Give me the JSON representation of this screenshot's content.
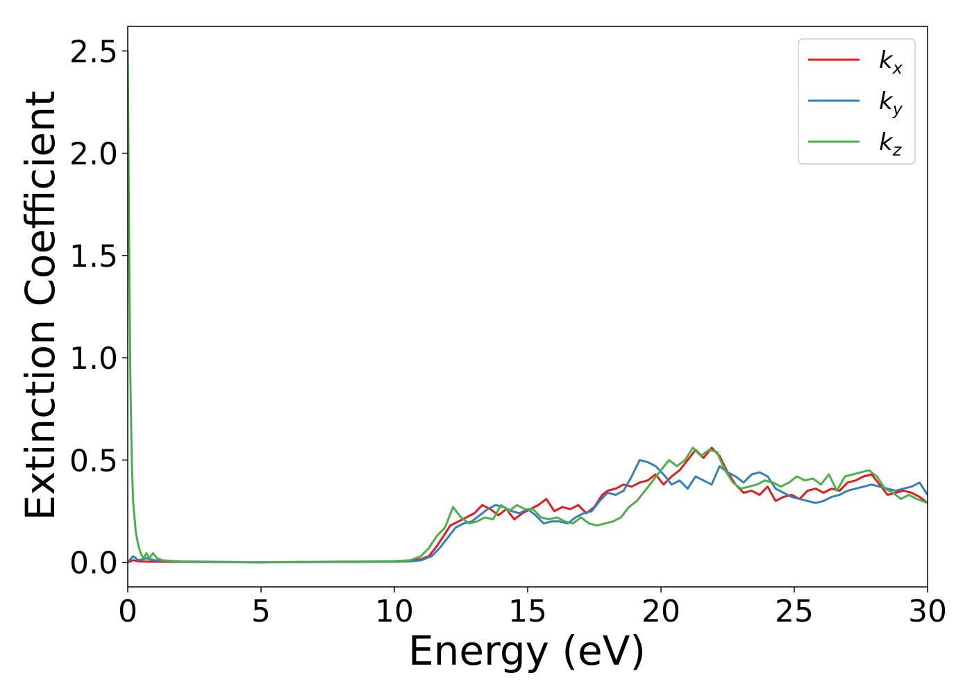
{
  "chart_data": {
    "type": "line",
    "title": "",
    "xlabel": "Energy (eV)",
    "ylabel": "Extinction Coefficient",
    "xlim": [
      0,
      30
    ],
    "ylim": [
      -0.12,
      2.62
    ],
    "xticks": [
      0,
      5,
      10,
      15,
      20,
      25,
      30
    ],
    "xtick_labels": [
      "0",
      "5",
      "10",
      "15",
      "20",
      "25",
      "30"
    ],
    "yticks": [
      0.0,
      0.5,
      1.0,
      1.5,
      2.0,
      2.5
    ],
    "ytick_labels": [
      "0.0",
      "0.5",
      "1.0",
      "1.5",
      "2.0",
      "2.5"
    ],
    "grid": false,
    "legend_position": "top-right",
    "series": [
      {
        "name": "k",
        "subscript": "x",
        "color": "#e41a1c",
        "points": [
          [
            0,
            0
          ],
          [
            0.2,
            0.01
          ],
          [
            0.4,
            0.005
          ],
          [
            1,
            0.003
          ],
          [
            2,
            0.002
          ],
          [
            5,
            0
          ],
          [
            10,
            0.005
          ],
          [
            10.6,
            0.008
          ],
          [
            11.0,
            0.015
          ],
          [
            11.3,
            0.03
          ],
          [
            11.6,
            0.08
          ],
          [
            11.9,
            0.14
          ],
          [
            12.1,
            0.18
          ],
          [
            12.4,
            0.2
          ],
          [
            12.7,
            0.22
          ],
          [
            13.0,
            0.24
          ],
          [
            13.3,
            0.28
          ],
          [
            13.6,
            0.26
          ],
          [
            13.9,
            0.23
          ],
          [
            14.2,
            0.26
          ],
          [
            14.5,
            0.21
          ],
          [
            14.8,
            0.24
          ],
          [
            15.1,
            0.26
          ],
          [
            15.4,
            0.28
          ],
          [
            15.7,
            0.31
          ],
          [
            16.0,
            0.25
          ],
          [
            16.3,
            0.27
          ],
          [
            16.6,
            0.26
          ],
          [
            16.9,
            0.28
          ],
          [
            17.2,
            0.24
          ],
          [
            17.5,
            0.27
          ],
          [
            17.8,
            0.33
          ],
          [
            18.0,
            0.35
          ],
          [
            18.3,
            0.36
          ],
          [
            18.6,
            0.38
          ],
          [
            18.9,
            0.37
          ],
          [
            19.2,
            0.39
          ],
          [
            19.5,
            0.4
          ],
          [
            19.8,
            0.43
          ],
          [
            20.1,
            0.38
          ],
          [
            20.4,
            0.42
          ],
          [
            20.7,
            0.45
          ],
          [
            21.0,
            0.5
          ],
          [
            21.3,
            0.55
          ],
          [
            21.6,
            0.51
          ],
          [
            21.9,
            0.56
          ],
          [
            22.2,
            0.52
          ],
          [
            22.5,
            0.44
          ],
          [
            22.8,
            0.38
          ],
          [
            23.1,
            0.34
          ],
          [
            23.4,
            0.35
          ],
          [
            23.7,
            0.33
          ],
          [
            24.0,
            0.37
          ],
          [
            24.3,
            0.3
          ],
          [
            24.6,
            0.32
          ],
          [
            24.9,
            0.33
          ],
          [
            25.2,
            0.31
          ],
          [
            25.5,
            0.35
          ],
          [
            25.8,
            0.36
          ],
          [
            26.1,
            0.34
          ],
          [
            26.4,
            0.36
          ],
          [
            26.7,
            0.35
          ],
          [
            27.0,
            0.39
          ],
          [
            27.3,
            0.4
          ],
          [
            27.6,
            0.42
          ],
          [
            27.9,
            0.43
          ],
          [
            28.2,
            0.38
          ],
          [
            28.5,
            0.33
          ],
          [
            28.8,
            0.34
          ],
          [
            29.1,
            0.35
          ],
          [
            29.4,
            0.34
          ],
          [
            29.7,
            0.32
          ],
          [
            30.0,
            0.29
          ]
        ]
      },
      {
        "name": "k",
        "subscript": "y",
        "color": "#377eb8",
        "points": [
          [
            0,
            0
          ],
          [
            0.2,
            0.03
          ],
          [
            0.4,
            0.01
          ],
          [
            0.7,
            0.02
          ],
          [
            1,
            0.01
          ],
          [
            2,
            0.005
          ],
          [
            5,
            0
          ],
          [
            10,
            0.003
          ],
          [
            10.6,
            0.005
          ],
          [
            11.0,
            0.01
          ],
          [
            11.4,
            0.03
          ],
          [
            11.7,
            0.07
          ],
          [
            12.0,
            0.12
          ],
          [
            12.3,
            0.17
          ],
          [
            12.6,
            0.19
          ],
          [
            12.9,
            0.2
          ],
          [
            13.2,
            0.23
          ],
          [
            13.5,
            0.26
          ],
          [
            13.8,
            0.28
          ],
          [
            14.1,
            0.27
          ],
          [
            14.4,
            0.25
          ],
          [
            14.7,
            0.24
          ],
          [
            15.0,
            0.26
          ],
          [
            15.3,
            0.23
          ],
          [
            15.6,
            0.19
          ],
          [
            15.9,
            0.2
          ],
          [
            16.2,
            0.2
          ],
          [
            16.5,
            0.19
          ],
          [
            16.8,
            0.22
          ],
          [
            17.1,
            0.24
          ],
          [
            17.4,
            0.25
          ],
          [
            17.7,
            0.3
          ],
          [
            18.0,
            0.34
          ],
          [
            18.3,
            0.33
          ],
          [
            18.6,
            0.35
          ],
          [
            18.9,
            0.42
          ],
          [
            19.2,
            0.5
          ],
          [
            19.5,
            0.49
          ],
          [
            19.8,
            0.47
          ],
          [
            20.1,
            0.43
          ],
          [
            20.4,
            0.38
          ],
          [
            20.7,
            0.4
          ],
          [
            21.0,
            0.36
          ],
          [
            21.3,
            0.42
          ],
          [
            21.6,
            0.4
          ],
          [
            21.9,
            0.38
          ],
          [
            22.2,
            0.47
          ],
          [
            22.5,
            0.44
          ],
          [
            22.8,
            0.42
          ],
          [
            23.1,
            0.39
          ],
          [
            23.4,
            0.43
          ],
          [
            23.7,
            0.44
          ],
          [
            24.0,
            0.42
          ],
          [
            24.3,
            0.36
          ],
          [
            24.6,
            0.34
          ],
          [
            24.9,
            0.32
          ],
          [
            25.2,
            0.31
          ],
          [
            25.5,
            0.3
          ],
          [
            25.8,
            0.29
          ],
          [
            26.1,
            0.3
          ],
          [
            26.4,
            0.32
          ],
          [
            26.7,
            0.33
          ],
          [
            27.0,
            0.35
          ],
          [
            27.3,
            0.36
          ],
          [
            27.6,
            0.37
          ],
          [
            27.9,
            0.38
          ],
          [
            28.2,
            0.37
          ],
          [
            28.5,
            0.36
          ],
          [
            28.8,
            0.35
          ],
          [
            29.1,
            0.36
          ],
          [
            29.4,
            0.37
          ],
          [
            29.7,
            0.39
          ],
          [
            30.0,
            0.33
          ]
        ]
      },
      {
        "name": "k",
        "subscript": "z",
        "color": "#4daf4a",
        "points": [
          [
            0,
            2.5
          ],
          [
            0.05,
            1.6
          ],
          [
            0.1,
            0.9
          ],
          [
            0.15,
            0.5
          ],
          [
            0.2,
            0.3
          ],
          [
            0.3,
            0.15
          ],
          [
            0.4,
            0.08
          ],
          [
            0.5,
            0.04
          ],
          [
            0.6,
            0.02
          ],
          [
            0.7,
            0.045
          ],
          [
            0.8,
            0.02
          ],
          [
            0.95,
            0.045
          ],
          [
            1.1,
            0.02
          ],
          [
            1.3,
            0.01
          ],
          [
            2,
            0.003
          ],
          [
            5,
            0
          ],
          [
            10,
            0.006
          ],
          [
            10.6,
            0.01
          ],
          [
            11.0,
            0.03
          ],
          [
            11.3,
            0.07
          ],
          [
            11.6,
            0.13
          ],
          [
            11.9,
            0.17
          ],
          [
            12.2,
            0.27
          ],
          [
            12.5,
            0.22
          ],
          [
            12.8,
            0.19
          ],
          [
            13.1,
            0.2
          ],
          [
            13.4,
            0.22
          ],
          [
            13.7,
            0.21
          ],
          [
            14.0,
            0.28
          ],
          [
            14.3,
            0.25
          ],
          [
            14.6,
            0.28
          ],
          [
            14.9,
            0.26
          ],
          [
            15.2,
            0.26
          ],
          [
            15.5,
            0.22
          ],
          [
            15.8,
            0.21
          ],
          [
            16.1,
            0.22
          ],
          [
            16.4,
            0.2
          ],
          [
            16.7,
            0.19
          ],
          [
            17.0,
            0.22
          ],
          [
            17.3,
            0.19
          ],
          [
            17.6,
            0.18
          ],
          [
            17.9,
            0.19
          ],
          [
            18.2,
            0.2
          ],
          [
            18.5,
            0.22
          ],
          [
            18.8,
            0.27
          ],
          [
            19.1,
            0.3
          ],
          [
            19.4,
            0.35
          ],
          [
            19.7,
            0.4
          ],
          [
            20.0,
            0.45
          ],
          [
            20.3,
            0.5
          ],
          [
            20.6,
            0.47
          ],
          [
            20.9,
            0.5
          ],
          [
            21.2,
            0.56
          ],
          [
            21.5,
            0.52
          ],
          [
            21.8,
            0.55
          ],
          [
            22.1,
            0.54
          ],
          [
            22.4,
            0.45
          ],
          [
            22.7,
            0.39
          ],
          [
            23.0,
            0.36
          ],
          [
            23.3,
            0.37
          ],
          [
            23.6,
            0.38
          ],
          [
            23.9,
            0.4
          ],
          [
            24.2,
            0.39
          ],
          [
            24.5,
            0.37
          ],
          [
            24.8,
            0.39
          ],
          [
            25.1,
            0.42
          ],
          [
            25.4,
            0.4
          ],
          [
            25.7,
            0.41
          ],
          [
            26.0,
            0.38
          ],
          [
            26.3,
            0.43
          ],
          [
            26.6,
            0.35
          ],
          [
            26.9,
            0.42
          ],
          [
            27.2,
            0.43
          ],
          [
            27.5,
            0.44
          ],
          [
            27.8,
            0.45
          ],
          [
            28.1,
            0.42
          ],
          [
            28.4,
            0.36
          ],
          [
            28.7,
            0.34
          ],
          [
            29.0,
            0.31
          ],
          [
            29.3,
            0.33
          ],
          [
            29.6,
            0.31
          ],
          [
            30.0,
            0.29
          ]
        ]
      }
    ]
  }
}
